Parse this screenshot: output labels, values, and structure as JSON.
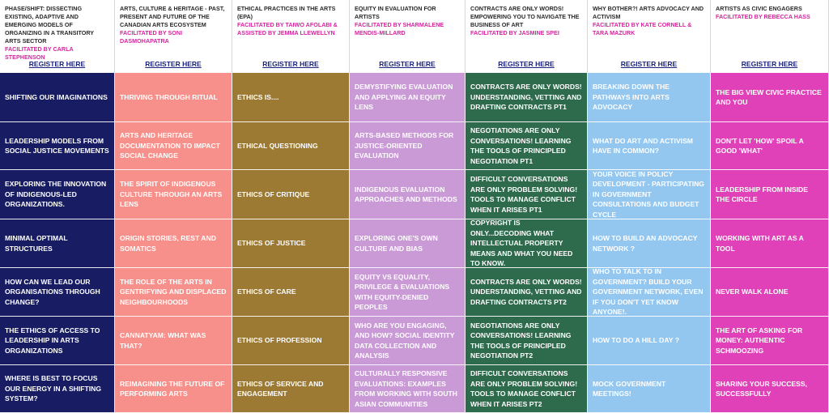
{
  "colors": {
    "col1": "#171c63",
    "col2": "#f7908a",
    "col3": "#9c7a34",
    "col4": "#c99ad6",
    "col5": "#2e6a4c",
    "col6": "#93c7f0",
    "col7": "#e040b8",
    "facilitator_text": "#d6249f",
    "register_link": "#1a237e"
  },
  "columns": [
    {
      "title": "PHASE/SHIFT: DISSECTING EXISTING, ADAPTIVE AND EMERGING MODELS OF ORGANIZING IN A TRANSITORY ARTS SECTOR",
      "facilitator": "FACILITATED BY CARLA STEPHENSON",
      "register": "REGISTER HERE",
      "sessions": [
        "SHIFTING OUR IMAGINATIONS",
        "LEADERSHIP MODELS FROM SOCIAL JUSTICE MOVEMENTS",
        "EXPLORING THE INNOVATION OF INDIGENOUS-LED ORGANIZATIONS.",
        "MINIMAL OPTIMAL STRUCTURES",
        "HOW CAN WE LEAD OUR ORGANISATIONS THROUGH CHANGE?",
        "THE ETHICS OF ACCESS TO LEADERSHIP IN ARTS ORGANIZATIONS",
        "WHERE IS BEST TO FOCUS OUR ENERGY IN A SHIFTING SYSTEM?"
      ]
    },
    {
      "title": "ARTS, CULTURE & HERITAGE - PAST, PRESENT AND FUTURE OF THE CANADIAN ARTS ECOSYSTEM",
      "facilitator": "FACILITATED BY SONI DASMOHAPATRA",
      "register": "REGISTER HERE",
      "sessions": [
        "THRIVING THROUGH RITUAL",
        "ARTS AND HERITAGE DOCUMENTATION TO IMPACT SOCIAL CHANGE",
        "THE SPIRIT OF INDIGENOUS CULTURE THROUGH AN ARTS LENS",
        "ORIGIN STORIES, REST AND SOMATICS",
        "THE ROLE OF THE ARTS IN GENTRIFYING AND DISPLACED NEIGHBOURHOODS",
        "CANNATYAM: WHAT WAS THAT?",
        "REIMAGINING THE FUTURE OF PERFORMING ARTS"
      ]
    },
    {
      "title": "ETHICAL PRACTICES IN THE ARTS (EPA)",
      "facilitator": "FACILITATED BY TAIWO AFOLABI & ASSISTED BY JEMMA LLEWELLYN",
      "register": "REGISTER HERE",
      "sessions": [
        "ETHICS IS....",
        "ETHICAL QUESTIONING",
        "ETHICS OF CRITIQUE",
        "ETHICS OF JUSTICE",
        "ETHICS OF CARE",
        "ETHICS OF PROFESSION",
        "ETHICS OF SERVICE AND ENGAGEMENT"
      ]
    },
    {
      "title": "EQUITY IN EVALUATION FOR ARTISTS",
      "facilitator": "FACILITATED BY SHARMALENE MENDIS-MILLARD",
      "register": "REGISTER HERE",
      "sessions": [
        "DEMYSTIFYING EVALUATION AND APPLYING AN EQUITY LENS",
        "ARTS-BASED METHODS FOR JUSTICE-ORIENTED EVALUATION",
        "INDIGENOUS EVALUATION APPROACHES AND METHODS",
        "EXPLORING ONE'S OWN CULTURE AND BIAS",
        "EQUITY VS EQUALITY, PRIVILEGE & EVALUATIONS WITH EQUITY-DENIED PEOPLES",
        "WHO ARE YOU ENGAGING, AND HOW? SOCIAL IDENTITY DATA COLLECTION AND ANALYSIS",
        "CULTURALLY RESPONSIVE EVALUATIONS: EXAMPLES FROM WORKING WITH SOUTH ASIAN COMMUNITIES"
      ]
    },
    {
      "title": "CONTRACTS ARE ONLY WORDS! EMPOWERING YOU TO NAVIGATE THE BUSINESS OF ART",
      "facilitator": "FACILITATED BY JASMINE SPEI",
      "register": "REGISTER HERE",
      "sessions": [
        "CONTRACTS ARE ONLY WORDS! UNDERSTANDING, VETTING AND DRAFTING CONTRACTS PT1",
        "NEGOTIATIONS ARE ONLY CONVERSATIONS! LEARNING THE TOOLS OF PRINCIPLED NEGOTIATION PT1",
        "DIFFICULT CONVERSATIONS ARE ONLY PROBLEM SOLVING! TOOLS TO MANAGE CONFLICT WHEN IT ARISES PT1",
        "COPYRIGHT IS ONLY...DECODING WHAT INTELLECTUAL PROPERTY MEANS AND WHAT YOU NEED TO KNOW.",
        "CONTRACTS ARE ONLY WORDS! UNDERSTANDING, VETTING AND DRAFTING CONTRACTS PT2",
        "NEGOTIATIONS ARE ONLY CONVERSATIONS! LEARNING THE TOOLS OF PRINCIPLED NEGOTIATION PT2",
        "DIFFICULT CONVERSATIONS ARE ONLY PROBLEM SOLVING! TOOLS TO MANAGE CONFLICT WHEN IT ARISES PT2"
      ]
    },
    {
      "title": "WHY BOTHER?! ARTS ADVOCACY AND ACTIVISM",
      "facilitator": "FACILITATED BY KATE CORNELL & TARA MAZURK",
      "register": "REGISTER HERE",
      "sessions": [
        "BREAKING DOWN THE PATHWAYS INTO ARTS ADVOCACY",
        "WHAT DO ART AND ACTIVISM HAVE IN COMMON?",
        "YOUR VOICE IN POLICY DEVELOPMENT - PARTICIPATING IN GOVERNMENT CONSULTATIONS AND BUDGET CYCLE",
        "HOW TO BUILD AN ADVOCACY NETWORK ?",
        "WHO TO TALK TO IN GOVERNMENT? BUILD YOUR GOVERNMENT NETWORK, EVEN IF YOU DON'T YET KNOW ANYONE!.",
        "HOW TO DO A HILL DAY ?",
        "MOCK GOVERNMENT MEETINGS!"
      ]
    },
    {
      "title": "ARTISTS AS CIVIC ENGAGERS",
      "facilitator": "FACILITATED BY REBECCA HASS",
      "register": "REGISTER HERE",
      "sessions": [
        "THE BIG VIEW CIVIC PRACTICE AND YOU",
        "DON'T LET 'HOW' SPOIL A GOOD 'WHAT'",
        "LEADERSHIP FROM INSIDE THE CIRCLE",
        "WORKING WITH ART AS A TOOL",
        "NEVER WALK ALONE",
        "THE ART OF ASKING FOR MONEY: AUTHENTIC SCHMOOZING",
        "SHARING YOUR SUCCESS, SUCCESSFULLY"
      ]
    }
  ]
}
